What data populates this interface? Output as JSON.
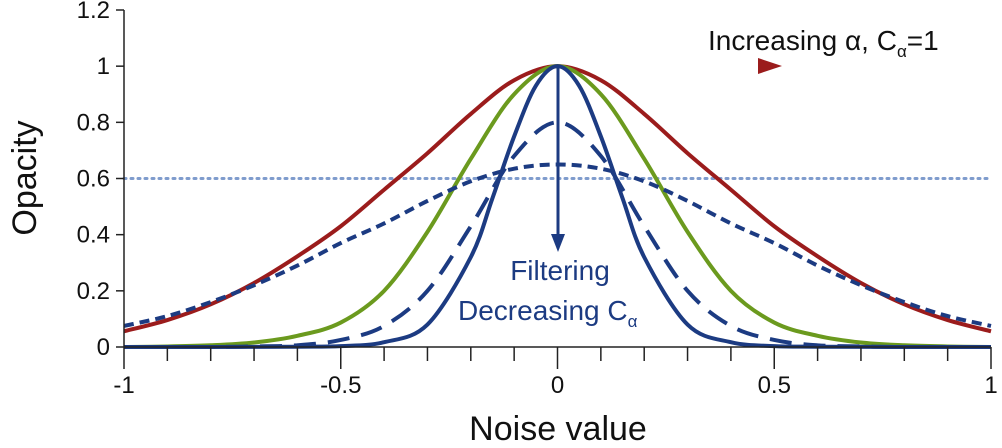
{
  "chart_data": {
    "type": "line",
    "title": "",
    "xlabel": "Noise value",
    "ylabel": "Opacity",
    "xlim": [
      -1,
      1
    ],
    "ylim": [
      0,
      1.2
    ],
    "x_ticks": [
      -1,
      -0.5,
      0,
      0.5,
      1
    ],
    "x_tick_labels": [
      "-1",
      "-0.5",
      "0",
      "0.5",
      "1"
    ],
    "y_ticks": [
      0,
      0.2,
      0.4,
      0.6,
      0.8,
      1,
      1.2
    ],
    "y_tick_labels": [
      "0",
      "0.2",
      "0.4",
      "0.6",
      "0.8",
      "1",
      "1.2"
    ],
    "grid": false,
    "series": [
      {
        "style": "solid",
        "color": "#9b1c1c",
        "x": [
          -1,
          -0.9,
          -0.8,
          -0.7,
          -0.6,
          -0.5,
          -0.4,
          -0.3,
          -0.2,
          -0.1,
          0,
          0.1,
          0.2,
          0.3,
          0.4,
          0.5,
          0.6,
          0.7,
          0.8,
          0.9,
          1
        ],
        "y": [
          0.056,
          0.096,
          0.152,
          0.228,
          0.323,
          0.43,
          0.56,
          0.69,
          0.83,
          0.95,
          1,
          0.95,
          0.83,
          0.69,
          0.56,
          0.43,
          0.323,
          0.228,
          0.152,
          0.096,
          0.056
        ]
      },
      {
        "style": "solid",
        "color": "#6b9a1e",
        "x": [
          -1,
          -0.9,
          -0.8,
          -0.7,
          -0.6,
          -0.5,
          -0.4,
          -0.3,
          -0.2,
          -0.1,
          0,
          0.1,
          0.2,
          0.3,
          0.4,
          0.5,
          0.6,
          0.7,
          0.8,
          0.9,
          1
        ],
        "y": [
          0,
          0.002,
          0.006,
          0.016,
          0.04,
          0.087,
          0.2,
          0.41,
          0.67,
          0.9,
          1,
          0.9,
          0.67,
          0.41,
          0.2,
          0.087,
          0.04,
          0.016,
          0.006,
          0.002,
          0
        ]
      },
      {
        "style": "solid",
        "color": "#1c3b82",
        "x": [
          -1,
          -0.8,
          -0.6,
          -0.5,
          -0.4,
          -0.3,
          -0.2,
          -0.15,
          -0.1,
          -0.05,
          0,
          0.05,
          0.1,
          0.15,
          0.2,
          0.3,
          0.4,
          0.5,
          0.6,
          0.8,
          1
        ],
        "y": [
          0,
          0,
          0.001,
          0.003,
          0.017,
          0.08,
          0.32,
          0.53,
          0.75,
          0.93,
          1,
          0.93,
          0.75,
          0.53,
          0.32,
          0.08,
          0.017,
          0.003,
          0.001,
          0,
          0
        ]
      },
      {
        "style": "long-dash",
        "color": "#1c3b82",
        "x": [
          -1,
          -0.8,
          -0.7,
          -0.6,
          -0.5,
          -0.4,
          -0.3,
          -0.2,
          -0.1,
          0,
          0.1,
          0.2,
          0.3,
          0.4,
          0.5,
          0.6,
          0.7,
          0.8,
          1
        ],
        "y": [
          0,
          0,
          0.002,
          0.006,
          0.025,
          0.075,
          0.2,
          0.43,
          0.68,
          0.8,
          0.68,
          0.43,
          0.2,
          0.075,
          0.025,
          0.006,
          0.002,
          0,
          0
        ]
      },
      {
        "style": "short-dash",
        "color": "#1c3b82",
        "x": [
          -1,
          -0.9,
          -0.8,
          -0.7,
          -0.6,
          -0.5,
          -0.4,
          -0.3,
          -0.2,
          -0.1,
          0,
          0.1,
          0.2,
          0.3,
          0.4,
          0.5,
          0.6,
          0.7,
          0.8,
          0.9,
          1
        ],
        "y": [
          0.075,
          0.11,
          0.16,
          0.22,
          0.29,
          0.37,
          0.44,
          0.52,
          0.59,
          0.635,
          0.65,
          0.635,
          0.59,
          0.52,
          0.44,
          0.37,
          0.29,
          0.22,
          0.16,
          0.11,
          0.075
        ]
      }
    ],
    "reference_line": {
      "y": 0.6,
      "style": "dotted",
      "color": "#7f9ccd"
    },
    "annotations": [
      {
        "text": "Increasing α, C",
        "subscript": "α",
        "suffix": "=1",
        "color": "#111111"
      },
      {
        "text": "Filtering",
        "color": "#1c3b82"
      },
      {
        "text": "Decreasing C",
        "subscript": "α",
        "color": "#1c3b82"
      }
    ],
    "arrows": [
      {
        "from": [
          0,
          1
        ],
        "to": [
          0.53,
          1
        ],
        "direction": "right"
      },
      {
        "from": [
          0,
          1
        ],
        "to": [
          0,
          0.34
        ],
        "direction": "down",
        "color": "#1c3b82"
      }
    ]
  }
}
